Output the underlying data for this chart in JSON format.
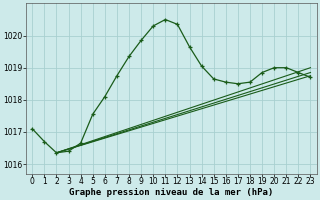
{
  "title": "Graphe pression niveau de la mer (hPa)",
  "background_color": "#cdeaea",
  "grid_color": "#a8d0d0",
  "line_color": "#1a5c1a",
  "xlim": [
    -0.5,
    23.5
  ],
  "ylim": [
    1015.7,
    1021.0
  ],
  "xticks": [
    0,
    1,
    2,
    3,
    4,
    5,
    6,
    7,
    8,
    9,
    10,
    11,
    12,
    13,
    14,
    15,
    16,
    17,
    18,
    19,
    20,
    21,
    22,
    23
  ],
  "yticks": [
    1016,
    1017,
    1018,
    1019,
    1020
  ],
  "main_x": [
    0,
    1,
    2,
    3,
    4,
    5,
    6,
    7,
    8,
    9,
    10,
    11,
    12,
    13,
    14,
    15,
    16,
    17,
    18,
    19,
    20,
    21,
    22,
    23
  ],
  "main_y": [
    1017.1,
    1016.7,
    1016.35,
    1016.4,
    1016.65,
    1017.55,
    1018.1,
    1018.75,
    1019.35,
    1019.85,
    1020.3,
    1020.5,
    1020.35,
    1019.65,
    1019.05,
    1018.65,
    1018.55,
    1018.5,
    1018.55,
    1018.85,
    1019.0,
    1019.0,
    1018.85,
    1018.7
  ],
  "trend1_x": [
    2,
    23
  ],
  "trend1_y": [
    1016.35,
    1018.75
  ],
  "trend2_x": [
    2,
    23
  ],
  "trend2_y": [
    1016.35,
    1018.85
  ],
  "trend3_x": [
    2,
    23
  ],
  "trend3_y": [
    1016.35,
    1019.0
  ],
  "tick_fontsize": 5.5,
  "xlabel_fontsize": 6.5
}
